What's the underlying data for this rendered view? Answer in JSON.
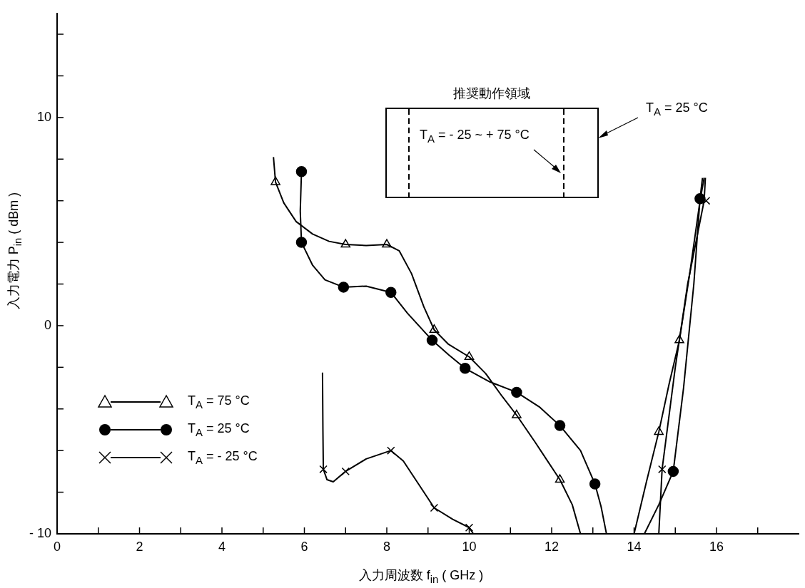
{
  "chart_data": {
    "type": "line",
    "xlabel": "入力周波数 f$_{in}$ ( GHz )",
    "ylabel": "入力電力 P$_{in}$ ( dBm )",
    "xlim": [
      0,
      18
    ],
    "ylim": [
      -10,
      15
    ],
    "xticks": [
      0,
      {
        "value": 1,
        "label": null
      },
      2,
      {
        "value": 3,
        "label": null
      },
      4,
      {
        "value": 5,
        "label": null
      },
      6,
      {
        "value": 7,
        "label": null
      },
      8,
      {
        "value": 9,
        "label": null
      },
      10,
      {
        "value": 11,
        "label": null
      },
      12,
      {
        "value": 13,
        "label": null
      },
      14,
      {
        "value": 15,
        "label": null
      },
      16,
      {
        "value": 17,
        "label": null
      }
    ],
    "yticks": [
      {
        "value": -10,
        "label": "- 10"
      },
      {
        "value": -8,
        "label": null
      },
      {
        "value": -6,
        "label": null
      },
      {
        "value": -4,
        "label": null
      },
      {
        "value": -2,
        "label": null
      },
      0,
      {
        "value": 2,
        "label": null
      },
      {
        "value": 4,
        "label": null
      },
      {
        "value": 6,
        "label": null
      },
      {
        "value": 8,
        "label": null
      },
      10,
      {
        "value": 12,
        "label": null
      },
      {
        "value": 14,
        "label": null
      }
    ],
    "grid": false,
    "legend": "bottom left",
    "line_style": "solid",
    "annotations": [
      "推奨動作領域",
      "T$_{A}$ =  - 25 ~ + 75 °C",
      "T$_{A}$ = 25 °C"
    ],
    "series": [
      {
        "marker": "none",
        "color": "#000000",
        "x": [
          5.25,
          5.3,
          5.5,
          5.8,
          6.2,
          6.6,
          7.0,
          7.5,
          8.0,
          8.3,
          8.6,
          8.9,
          9.15,
          9.5,
          10.0,
          10.4,
          10.8,
          11.15,
          11.6,
          12.2,
          12.5,
          12.7,
          13.5,
          14.0,
          14.3,
          14.6,
          14.85,
          15.1,
          15.35,
          15.6,
          15.7
        ],
        "values": [
          8.1,
          6.9,
          5.9,
          5.0,
          4.4,
          4.05,
          3.9,
          3.85,
          3.9,
          3.6,
          2.5,
          0.9,
          -0.2,
          -0.9,
          -1.5,
          -2.3,
          -3.4,
          -4.3,
          -5.6,
          -7.4,
          -8.6,
          -10,
          null,
          -10,
          -7.5,
          -5.1,
          -2.8,
          -0.7,
          2.5,
          6.0,
          7.1
        ]
      },
      {
        "marker": "none",
        "color": "#000000",
        "x": [
          5.93,
          5.9,
          5.93,
          6.2,
          6.5,
          6.95,
          7.5,
          8.1,
          8.5,
          9.1,
          9.5,
          9.9,
          10.5,
          11.15,
          11.7,
          12.2,
          12.7,
          13.05,
          13.2,
          13.33,
          13.8,
          14.25,
          14.6,
          14.95,
          15.2,
          15.45,
          15.6,
          15.66
        ],
        "values": [
          7.4,
          5.5,
          4.0,
          2.9,
          2.2,
          1.85,
          1.9,
          1.6,
          0.6,
          -0.7,
          -1.4,
          -2.05,
          -2.7,
          -3.2,
          -3.9,
          -4.8,
          -6.0,
          -7.6,
          -8.7,
          -10,
          null,
          -10,
          -8.6,
          -7.0,
          -3.0,
          2.0,
          6.1,
          7.1
        ]
      },
      {
        "marker": "none",
        "color": "#000000",
        "x": [
          6.44,
          6.45,
          6.46,
          6.55,
          6.7,
          7.0,
          7.5,
          8.1,
          8.4,
          8.8,
          9.15,
          9.6,
          10.0,
          10.1,
          12.0,
          14.6,
          14.68,
          15.0,
          15.3,
          15.7,
          15.73
        ],
        "values": [
          -2.25,
          -5.0,
          -6.9,
          -7.4,
          -7.5,
          -7.0,
          -6.4,
          -6.0,
          -6.5,
          -7.7,
          -8.75,
          -9.3,
          -9.7,
          -10,
          null,
          -10,
          -6.9,
          -2.0,
          2.0,
          6.0,
          7.1
        ]
      },
      {
        "type": "scatter",
        "name": "T$_{A}$ = 75 °C",
        "marker": "triangle",
        "color": "#000000",
        "x": [
          5.3,
          7.0,
          8.0,
          9.15,
          10.0,
          11.15,
          12.2,
          14.6,
          15.1
        ],
        "values": [
          6.9,
          3.9,
          3.9,
          -0.2,
          -1.5,
          -4.3,
          -7.4,
          -5.1,
          -0.7
        ]
      },
      {
        "type": "scatter",
        "name": "T$_{A}$ = 25 °C",
        "marker": "circle",
        "color": "#000000",
        "x": [
          5.93,
          5.93,
          6.95,
          8.1,
          9.1,
          9.9,
          11.15,
          12.2,
          13.05,
          14.95,
          15.6
        ],
        "values": [
          7.4,
          4.0,
          1.85,
          1.6,
          -0.7,
          -2.05,
          -3.2,
          -4.8,
          -7.6,
          -7.0,
          6.1
        ]
      },
      {
        "type": "scatter",
        "name": "T$_{A}$ =  - 25 °C",
        "marker": "cross",
        "color": "#000000",
        "x": [
          6.46,
          7.0,
          8.1,
          9.15,
          10.0,
          14.68,
          15.75
        ],
        "values": [
          -6.9,
          -7.0,
          -6.0,
          -8.75,
          -9.7,
          -6.9,
          6.0
        ]
      }
    ]
  }
}
